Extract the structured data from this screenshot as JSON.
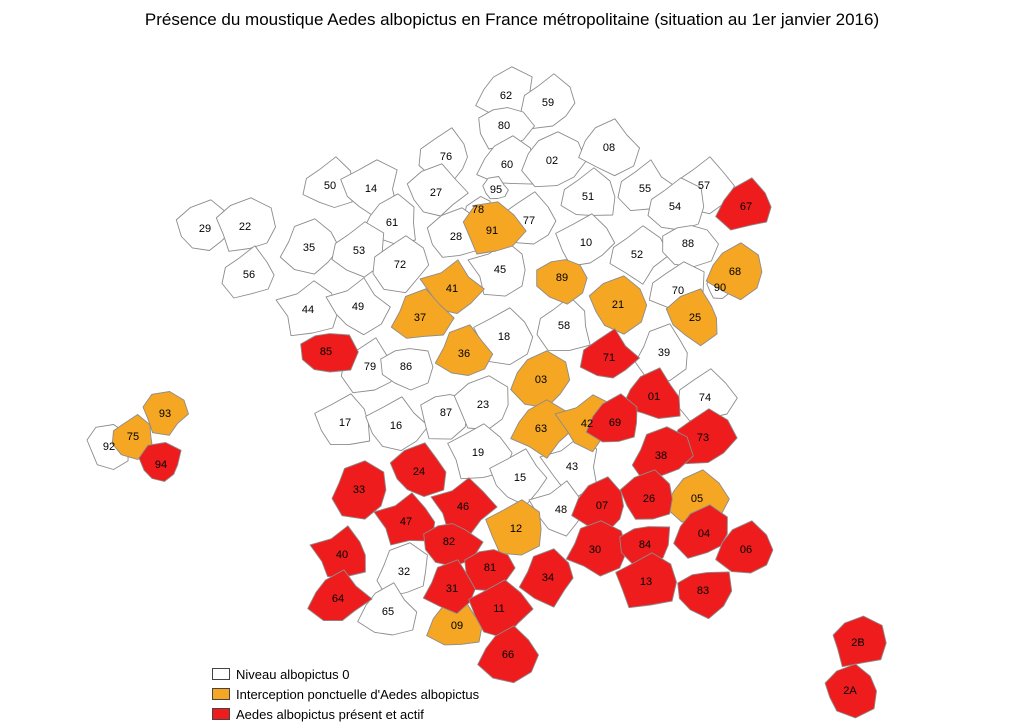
{
  "title": "Présence du moustique Aedes albopictus en France métropolitaine (situation au 1er janvier 2016)",
  "colors": {
    "level_0": "#ffffff",
    "interception": "#f5a623",
    "present_actif": "#ee1c1c"
  },
  "legend": [
    {
      "key": "level_0",
      "label": "Niveau albopictus 0"
    },
    {
      "key": "interception",
      "label": "Interception ponctuelle d'Aedes albopictus"
    },
    {
      "key": "present_actif",
      "label": "Aedes albopictus présent et actif"
    }
  ],
  "departments": [
    {
      "code": "62",
      "status": "level_0"
    },
    {
      "code": "59",
      "status": "level_0"
    },
    {
      "code": "80",
      "status": "level_0"
    },
    {
      "code": "76",
      "status": "level_0"
    },
    {
      "code": "60",
      "status": "level_0"
    },
    {
      "code": "02",
      "status": "level_0"
    },
    {
      "code": "08",
      "status": "level_0"
    },
    {
      "code": "50",
      "status": "level_0"
    },
    {
      "code": "14",
      "status": "level_0"
    },
    {
      "code": "27",
      "status": "level_0"
    },
    {
      "code": "95",
      "status": "level_0"
    },
    {
      "code": "78",
      "status": "level_0"
    },
    {
      "code": "91",
      "status": "interception"
    },
    {
      "code": "77",
      "status": "level_0"
    },
    {
      "code": "51",
      "status": "level_0"
    },
    {
      "code": "55",
      "status": "level_0"
    },
    {
      "code": "57",
      "status": "level_0"
    },
    {
      "code": "67",
      "status": "present_actif"
    },
    {
      "code": "54",
      "status": "level_0"
    },
    {
      "code": "29",
      "status": "level_0"
    },
    {
      "code": "22",
      "status": "level_0"
    },
    {
      "code": "35",
      "status": "level_0"
    },
    {
      "code": "61",
      "status": "level_0"
    },
    {
      "code": "53",
      "status": "level_0"
    },
    {
      "code": "72",
      "status": "level_0"
    },
    {
      "code": "28",
      "status": "level_0"
    },
    {
      "code": "10",
      "status": "level_0"
    },
    {
      "code": "52",
      "status": "level_0"
    },
    {
      "code": "88",
      "status": "level_0"
    },
    {
      "code": "68",
      "status": "interception"
    },
    {
      "code": "56",
      "status": "level_0"
    },
    {
      "code": "44",
      "status": "level_0"
    },
    {
      "code": "49",
      "status": "level_0"
    },
    {
      "code": "41",
      "status": "interception"
    },
    {
      "code": "45",
      "status": "level_0"
    },
    {
      "code": "89",
      "status": "interception"
    },
    {
      "code": "21",
      "status": "interception"
    },
    {
      "code": "70",
      "status": "level_0"
    },
    {
      "code": "90",
      "status": "level_0"
    },
    {
      "code": "37",
      "status": "interception"
    },
    {
      "code": "18",
      "status": "level_0"
    },
    {
      "code": "58",
      "status": "level_0"
    },
    {
      "code": "25",
      "status": "interception"
    },
    {
      "code": "85",
      "status": "present_actif"
    },
    {
      "code": "79",
      "status": "level_0"
    },
    {
      "code": "86",
      "status": "level_0"
    },
    {
      "code": "36",
      "status": "interception"
    },
    {
      "code": "71",
      "status": "present_actif"
    },
    {
      "code": "39",
      "status": "level_0"
    },
    {
      "code": "03",
      "status": "interception"
    },
    {
      "code": "01",
      "status": "present_actif"
    },
    {
      "code": "74",
      "status": "level_0"
    },
    {
      "code": "17",
      "status": "level_0"
    },
    {
      "code": "16",
      "status": "level_0"
    },
    {
      "code": "87",
      "status": "level_0"
    },
    {
      "code": "23",
      "status": "level_0"
    },
    {
      "code": "63",
      "status": "interception"
    },
    {
      "code": "42",
      "status": "interception"
    },
    {
      "code": "69",
      "status": "present_actif"
    },
    {
      "code": "73",
      "status": "present_actif"
    },
    {
      "code": "38",
      "status": "present_actif"
    },
    {
      "code": "19",
      "status": "level_0"
    },
    {
      "code": "15",
      "status": "level_0"
    },
    {
      "code": "43",
      "status": "level_0"
    },
    {
      "code": "24",
      "status": "present_actif"
    },
    {
      "code": "33",
      "status": "present_actif"
    },
    {
      "code": "46",
      "status": "present_actif"
    },
    {
      "code": "12",
      "status": "interception"
    },
    {
      "code": "48",
      "status": "level_0"
    },
    {
      "code": "07",
      "status": "present_actif"
    },
    {
      "code": "26",
      "status": "present_actif"
    },
    {
      "code": "05",
      "status": "interception"
    },
    {
      "code": "47",
      "status": "present_actif"
    },
    {
      "code": "82",
      "status": "present_actif"
    },
    {
      "code": "81",
      "status": "present_actif"
    },
    {
      "code": "30",
      "status": "present_actif"
    },
    {
      "code": "84",
      "status": "present_actif"
    },
    {
      "code": "04",
      "status": "present_actif"
    },
    {
      "code": "06",
      "status": "present_actif"
    },
    {
      "code": "40",
      "status": "present_actif"
    },
    {
      "code": "32",
      "status": "level_0"
    },
    {
      "code": "31",
      "status": "present_actif"
    },
    {
      "code": "34",
      "status": "present_actif"
    },
    {
      "code": "13",
      "status": "present_actif"
    },
    {
      "code": "83",
      "status": "present_actif"
    },
    {
      "code": "64",
      "status": "present_actif"
    },
    {
      "code": "65",
      "status": "level_0"
    },
    {
      "code": "09",
      "status": "interception"
    },
    {
      "code": "11",
      "status": "present_actif"
    },
    {
      "code": "66",
      "status": "present_actif"
    },
    {
      "code": "2B",
      "status": "present_actif"
    },
    {
      "code": "2A",
      "status": "present_actif"
    },
    {
      "code": "93",
      "status": "interception"
    },
    {
      "code": "75",
      "status": "interception"
    },
    {
      "code": "92",
      "status": "level_0"
    },
    {
      "code": "94",
      "status": "present_actif"
    }
  ]
}
